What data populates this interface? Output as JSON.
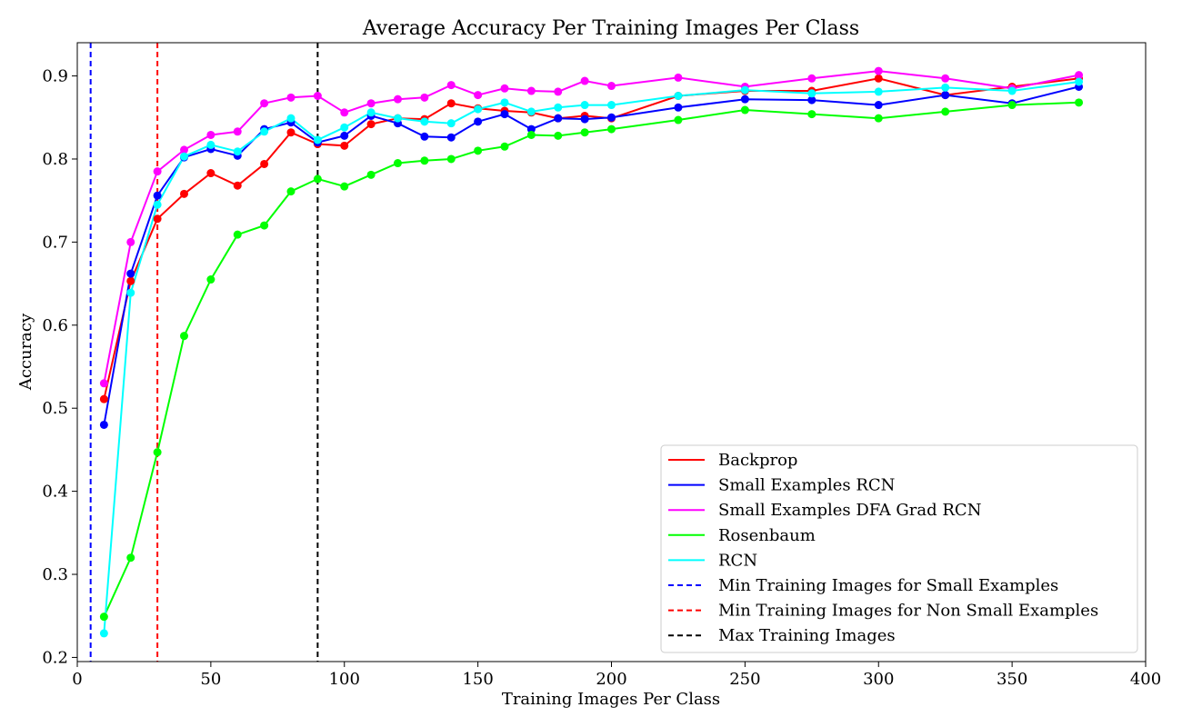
{
  "chart_data": {
    "type": "line",
    "title": "Average Accuracy Per Training Images Per Class",
    "xlabel": "Training Images Per Class",
    "ylabel": "Accuracy",
    "xlim": [
      0,
      400
    ],
    "ylim": [
      0.195,
      0.94
    ],
    "xticks": [
      0,
      50,
      100,
      150,
      200,
      250,
      300,
      350,
      400
    ],
    "yticks": [
      0.2,
      0.3,
      0.4,
      0.5,
      0.6,
      0.7,
      0.8,
      0.9
    ],
    "xtick_labels": [
      "0",
      "50",
      "100",
      "150",
      "200",
      "250",
      "300",
      "350",
      "400"
    ],
    "ytick_labels": [
      "0.2",
      "0.3",
      "0.4",
      "0.5",
      "0.6",
      "0.7",
      "0.8",
      "0.9"
    ],
    "grid": false,
    "legend_position": "lower-right",
    "x": [
      10,
      20,
      30,
      40,
      50,
      60,
      70,
      80,
      90,
      100,
      110,
      120,
      130,
      140,
      150,
      160,
      170,
      180,
      190,
      200,
      225,
      250,
      275,
      300,
      325,
      350,
      375
    ],
    "series": [
      {
        "name": "Backprop",
        "color": "#ff0000",
        "values": [
          0.511,
          0.653,
          0.728,
          0.758,
          0.783,
          0.768,
          0.794,
          0.832,
          0.818,
          0.816,
          0.842,
          0.849,
          0.848,
          0.867,
          0.861,
          0.858,
          0.856,
          0.849,
          0.852,
          0.849,
          0.876,
          0.882,
          0.882,
          0.897,
          0.877,
          0.887,
          0.897
        ]
      },
      {
        "name": "Small Examples RCN",
        "color": "#0000ff",
        "values": [
          0.48,
          0.662,
          0.756,
          0.802,
          0.812,
          0.804,
          0.836,
          0.844,
          0.82,
          0.828,
          0.852,
          0.843,
          0.827,
          0.826,
          0.845,
          0.854,
          0.836,
          0.849,
          0.848,
          0.85,
          0.862,
          0.872,
          0.871,
          0.865,
          0.877,
          0.867,
          0.887
        ]
      },
      {
        "name": "Small Examples DFA Grad RCN",
        "color": "#ff00ff",
        "values": [
          0.53,
          0.7,
          0.785,
          0.811,
          0.829,
          0.833,
          0.867,
          0.874,
          0.876,
          0.856,
          0.867,
          0.872,
          0.874,
          0.889,
          0.877,
          0.885,
          0.882,
          0.881,
          0.894,
          0.888,
          0.898,
          0.887,
          0.897,
          0.906,
          0.897,
          0.885,
          0.901
        ]
      },
      {
        "name": "Rosenbaum",
        "color": "#00ff00",
        "values": [
          0.249,
          0.32,
          0.447,
          0.587,
          0.655,
          0.709,
          0.72,
          0.761,
          0.776,
          0.767,
          0.781,
          0.795,
          0.798,
          0.8,
          0.81,
          0.815,
          0.829,
          0.828,
          0.832,
          0.836,
          0.847,
          0.859,
          0.854,
          0.849,
          0.857,
          0.865,
          0.868
        ]
      },
      {
        "name": "RCN",
        "color": "#00ffff",
        "values": [
          0.229,
          0.639,
          0.745,
          0.803,
          0.817,
          0.809,
          0.833,
          0.849,
          0.823,
          0.838,
          0.856,
          0.849,
          0.845,
          0.843,
          0.86,
          0.868,
          0.857,
          0.862,
          0.865,
          0.865,
          0.876,
          0.883,
          0.879,
          0.881,
          0.886,
          0.882,
          0.893
        ]
      }
    ],
    "reference_lines": [
      {
        "name": "Min Training Images for Small Examples",
        "x": 5,
        "color": "#0000ff",
        "style": "dashed"
      },
      {
        "name": "Min Training Images for Non Small Examples",
        "x": 30,
        "color": "#ff0000",
        "style": "dashed"
      },
      {
        "name": "Max Training Images",
        "x": 90,
        "color": "#000000",
        "style": "dashed"
      }
    ]
  }
}
